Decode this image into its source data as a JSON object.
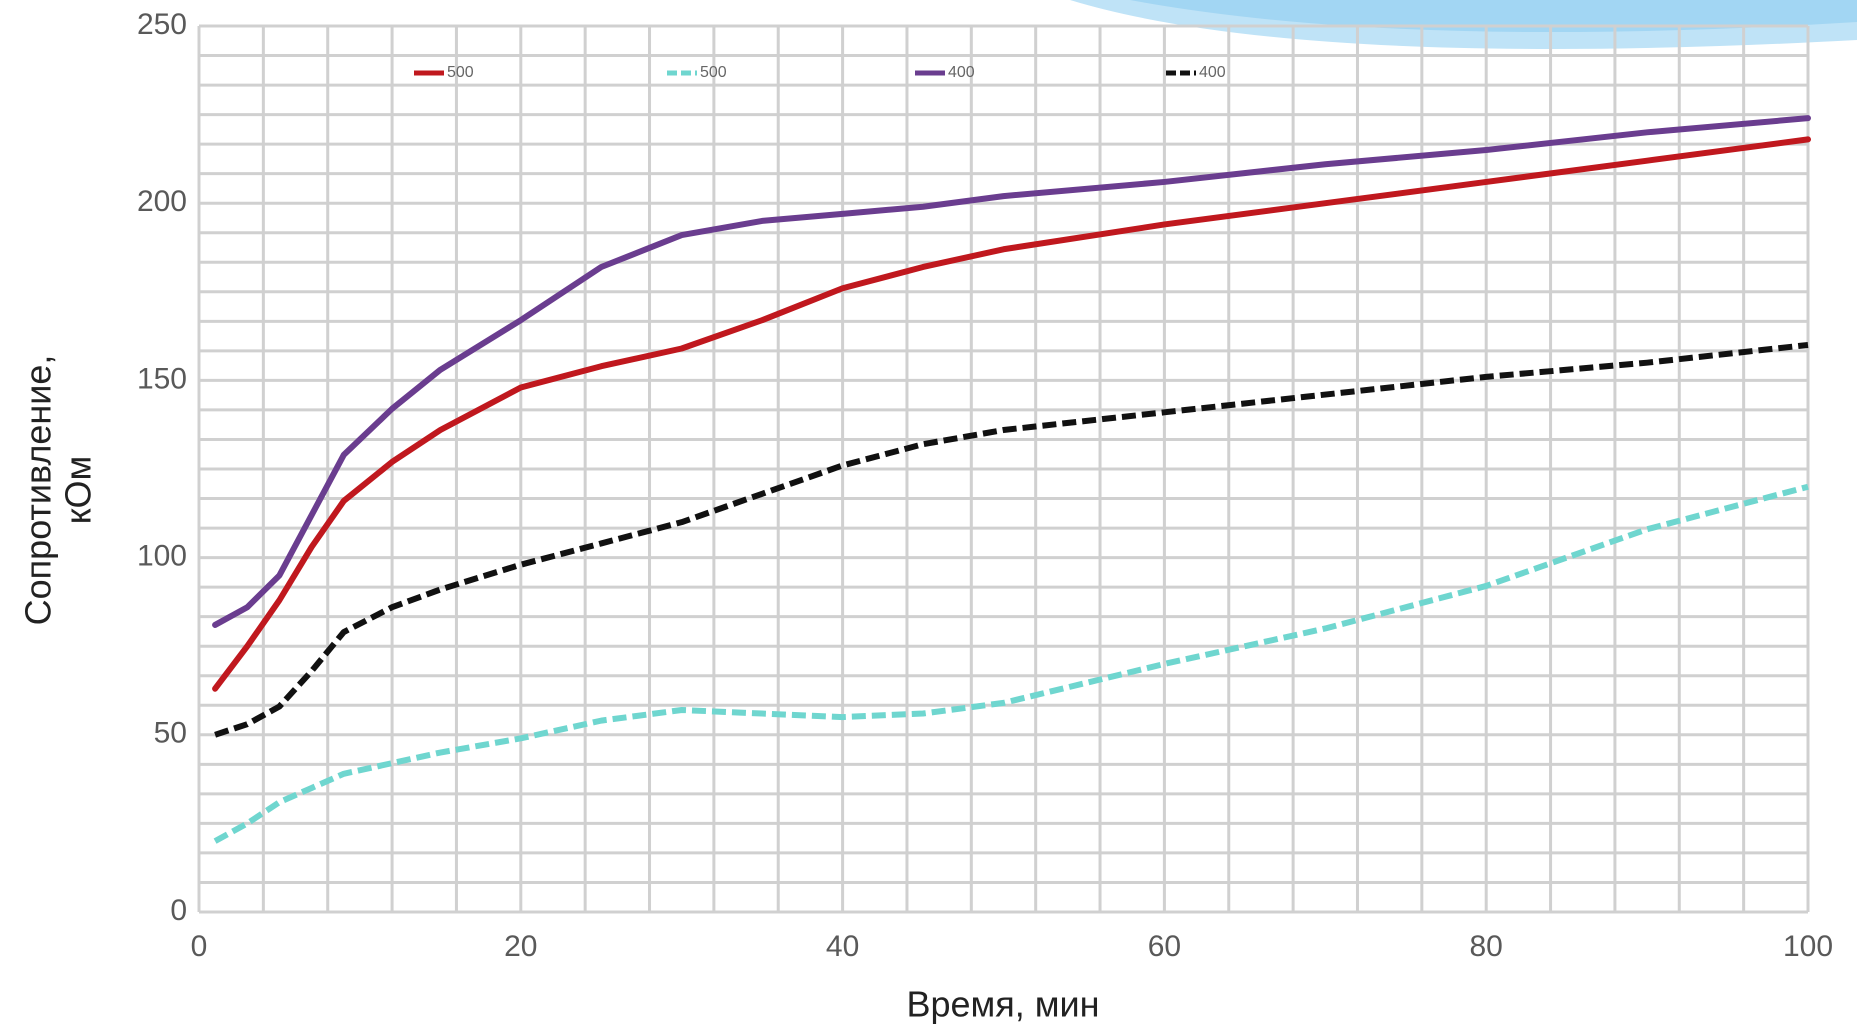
{
  "chart_data": {
    "type": "line",
    "x_label": "Время, мин",
    "y_label": [
      "Сопротивление,",
      "кОм"
    ],
    "x": [
      1,
      3,
      5,
      7,
      9,
      12,
      15,
      20,
      25,
      30,
      35,
      40,
      45,
      50,
      60,
      70,
      80,
      90,
      100
    ],
    "series": [
      {
        "name": "500",
        "color": "#c0181e",
        "dashed": false,
        "values": [
          63,
          75,
          88,
          103,
          116,
          127,
          136,
          148,
          154,
          159,
          167,
          176,
          182,
          187,
          194,
          200,
          206,
          212,
          218
        ]
      },
      {
        "name": "500",
        "color": "#6fd6cf",
        "dashed": true,
        "values": [
          20,
          25,
          31,
          35,
          39,
          42,
          45,
          49,
          54,
          57,
          56,
          55,
          56,
          59,
          70,
          80,
          92,
          108,
          120
        ]
      },
      {
        "name": "400",
        "color": "#6a3d8f",
        "dashed": false,
        "values": [
          81,
          86,
          95,
          112,
          129,
          142,
          153,
          167,
          182,
          191,
          195,
          197,
          199,
          202,
          206,
          211,
          215,
          220,
          224
        ]
      },
      {
        "name": "400",
        "color": "#111111",
        "dashed": true,
        "values": [
          50,
          53,
          58,
          68,
          79,
          86,
          91,
          98,
          104,
          110,
          118,
          126,
          132,
          136,
          141,
          146,
          151,
          155,
          160
        ]
      }
    ],
    "xlim": [
      0,
      100
    ],
    "xticks": [
      0,
      20,
      40,
      60,
      80,
      100
    ],
    "ylim": [
      0,
      250
    ],
    "yticks": [
      0,
      50,
      100,
      150,
      200,
      250
    ],
    "grid": true
  }
}
